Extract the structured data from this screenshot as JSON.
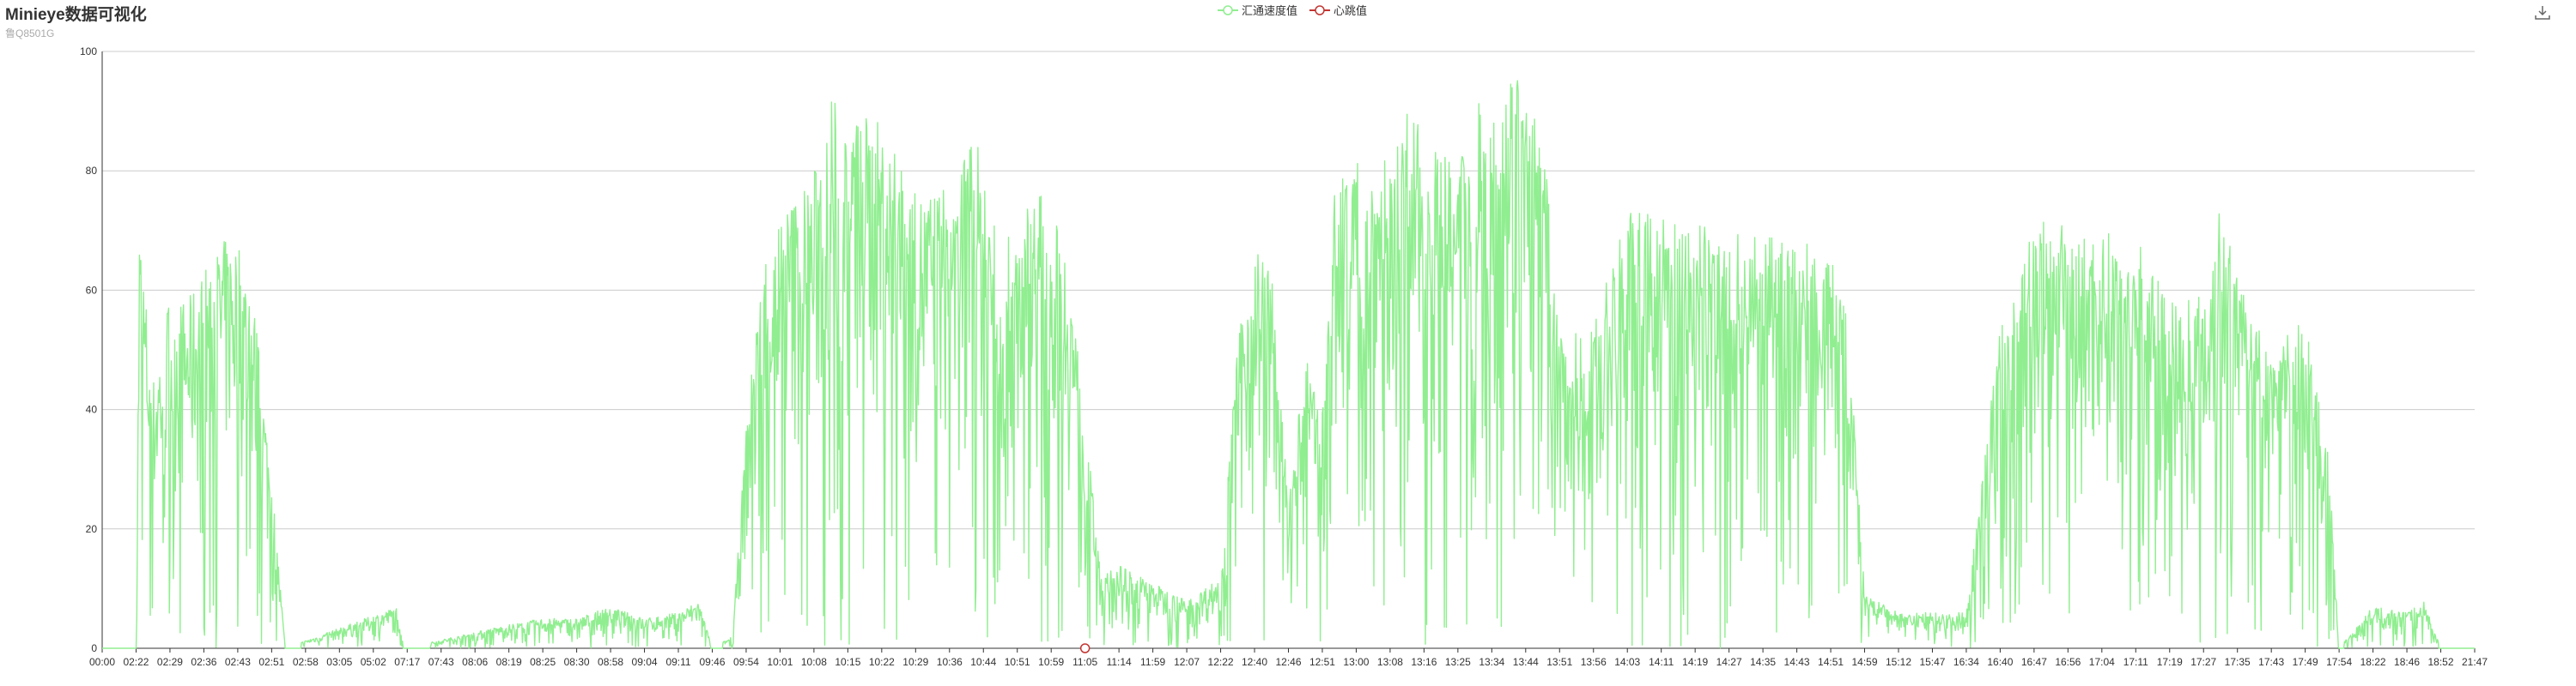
{
  "header": {
    "title": "Minieye数据可视化",
    "subtitle": "鲁Q8501G"
  },
  "legend": [
    {
      "name": "汇通速度值",
      "color": "#90ee90"
    },
    {
      "name": "心跳值",
      "color": "#c23531"
    }
  ],
  "toolbox": {
    "icon": "download-icon"
  },
  "chart_data": {
    "type": "line",
    "ylim": [
      0,
      100
    ],
    "y_ticks": [
      0,
      20,
      40,
      60,
      80,
      100
    ],
    "grid": true,
    "legend_position": "top-center",
    "x_ticks": [
      "00:00",
      "02:22",
      "02:29",
      "02:36",
      "02:43",
      "02:51",
      "02:58",
      "03:05",
      "05:02",
      "07:17",
      "07:43",
      "08:06",
      "08:19",
      "08:25",
      "08:30",
      "08:58",
      "09:04",
      "09:11",
      "09:46",
      "09:54",
      "10:01",
      "10:08",
      "10:15",
      "10:22",
      "10:29",
      "10:36",
      "10:44",
      "10:51",
      "10:59",
      "11:05",
      "11:14",
      "11:59",
      "12:07",
      "12:22",
      "12:40",
      "12:46",
      "12:51",
      "13:00",
      "13:08",
      "13:16",
      "13:25",
      "13:34",
      "13:44",
      "13:51",
      "13:56",
      "14:03",
      "14:11",
      "14:19",
      "14:27",
      "14:35",
      "14:43",
      "14:51",
      "14:59",
      "15:12",
      "15:47",
      "16:34",
      "16:40",
      "16:47",
      "16:56",
      "17:04",
      "17:11",
      "17:19",
      "17:27",
      "17:35",
      "17:43",
      "17:49",
      "17:54",
      "18:22",
      "18:46",
      "18:52",
      "21:47"
    ],
    "series": [
      {
        "name": "汇通速度值",
        "color": "#90ee90",
        "envelope": [
          {
            "x": 0.0,
            "y": 0
          },
          {
            "x": 1.0,
            "y": 0
          },
          {
            "x": 1.1,
            "y": 72
          },
          {
            "x": 1.5,
            "y": 45
          },
          {
            "x": 2.0,
            "y": 60
          },
          {
            "x": 2.5,
            "y": 58
          },
          {
            "x": 3.0,
            "y": 64
          },
          {
            "x": 3.5,
            "y": 68
          },
          {
            "x": 4.0,
            "y": 70
          },
          {
            "x": 4.5,
            "y": 57
          },
          {
            "x": 5.0,
            "y": 29
          },
          {
            "x": 5.4,
            "y": 0
          },
          {
            "x": 8.7,
            "y": 7
          },
          {
            "x": 8.9,
            "y": 0
          },
          {
            "x": 12.0,
            "y": 4
          },
          {
            "x": 13.0,
            "y": 5
          },
          {
            "x": 14.0,
            "y": 5
          },
          {
            "x": 15.0,
            "y": 7
          },
          {
            "x": 16.0,
            "y": 5
          },
          {
            "x": 17.0,
            "y": 6
          },
          {
            "x": 17.6,
            "y": 8
          },
          {
            "x": 18.0,
            "y": 0
          },
          {
            "x": 18.6,
            "y": 2
          },
          {
            "x": 19.0,
            "y": 37
          },
          {
            "x": 19.5,
            "y": 66
          },
          {
            "x": 20.0,
            "y": 73
          },
          {
            "x": 21.0,
            "y": 80
          },
          {
            "x": 21.5,
            "y": 94
          },
          {
            "x": 22.0,
            "y": 88
          },
          {
            "x": 22.5,
            "y": 90
          },
          {
            "x": 23.0,
            "y": 88
          },
          {
            "x": 24.0,
            "y": 76
          },
          {
            "x": 25.0,
            "y": 78
          },
          {
            "x": 25.7,
            "y": 88
          },
          {
            "x": 26.5,
            "y": 66
          },
          {
            "x": 27.0,
            "y": 72
          },
          {
            "x": 27.6,
            "y": 78
          },
          {
            "x": 28.5,
            "y": 67
          },
          {
            "x": 29.0,
            "y": 38
          },
          {
            "x": 29.5,
            "y": 12
          },
          {
            "x": 30.0,
            "y": 14
          },
          {
            "x": 31.0,
            "y": 11
          },
          {
            "x": 32.0,
            "y": 8
          },
          {
            "x": 33.0,
            "y": 12
          },
          {
            "x": 33.5,
            "y": 51
          },
          {
            "x": 34.0,
            "y": 69
          },
          {
            "x": 34.5,
            "y": 63
          },
          {
            "x": 35.0,
            "y": 24
          },
          {
            "x": 35.5,
            "y": 49
          },
          {
            "x": 36.0,
            "y": 40
          },
          {
            "x": 36.3,
            "y": 76
          },
          {
            "x": 37.0,
            "y": 84
          },
          {
            "x": 37.5,
            "y": 84
          },
          {
            "x": 38.0,
            "y": 82
          },
          {
            "x": 38.5,
            "y": 91
          },
          {
            "x": 39.0,
            "y": 86
          },
          {
            "x": 40.0,
            "y": 80
          },
          {
            "x": 40.5,
            "y": 94
          },
          {
            "x": 41.0,
            "y": 93
          },
          {
            "x": 41.5,
            "y": 100
          },
          {
            "x": 42.0,
            "y": 93
          },
          {
            "x": 42.5,
            "y": 88
          },
          {
            "x": 43.0,
            "y": 52
          },
          {
            "x": 44.0,
            "y": 54
          },
          {
            "x": 45.0,
            "y": 73
          },
          {
            "x": 46.0,
            "y": 73
          },
          {
            "x": 47.0,
            "y": 72
          },
          {
            "x": 48.0,
            "y": 70
          },
          {
            "x": 49.0,
            "y": 69
          },
          {
            "x": 50.0,
            "y": 69
          },
          {
            "x": 51.0,
            "y": 66
          },
          {
            "x": 51.5,
            "y": 57
          },
          {
            "x": 52.0,
            "y": 9
          },
          {
            "x": 53.0,
            "y": 6
          },
          {
            "x": 54.0,
            "y": 6
          },
          {
            "x": 55.0,
            "y": 6
          },
          {
            "x": 56.0,
            "y": 55
          },
          {
            "x": 56.5,
            "y": 61
          },
          {
            "x": 57.0,
            "y": 72
          },
          {
            "x": 57.5,
            "y": 74
          },
          {
            "x": 58.0,
            "y": 69
          },
          {
            "x": 59.0,
            "y": 70
          },
          {
            "x": 60.0,
            "y": 69
          },
          {
            "x": 61.0,
            "y": 58
          },
          {
            "x": 62.0,
            "y": 60
          },
          {
            "x": 62.5,
            "y": 78
          },
          {
            "x": 63.0,
            "y": 62
          },
          {
            "x": 64.0,
            "y": 51
          },
          {
            "x": 65.0,
            "y": 56
          },
          {
            "x": 65.7,
            "y": 32
          },
          {
            "x": 66.0,
            "y": 0
          },
          {
            "x": 67.0,
            "y": 7
          },
          {
            "x": 68.0,
            "y": 6
          },
          {
            "x": 68.5,
            "y": 8
          },
          {
            "x": 69.0,
            "y": 0
          },
          {
            "x": 70.0,
            "y": 0
          }
        ]
      },
      {
        "name": "心跳值",
        "color": "#c23531",
        "points": [
          {
            "x": 29.0,
            "y": 0
          }
        ]
      }
    ]
  }
}
